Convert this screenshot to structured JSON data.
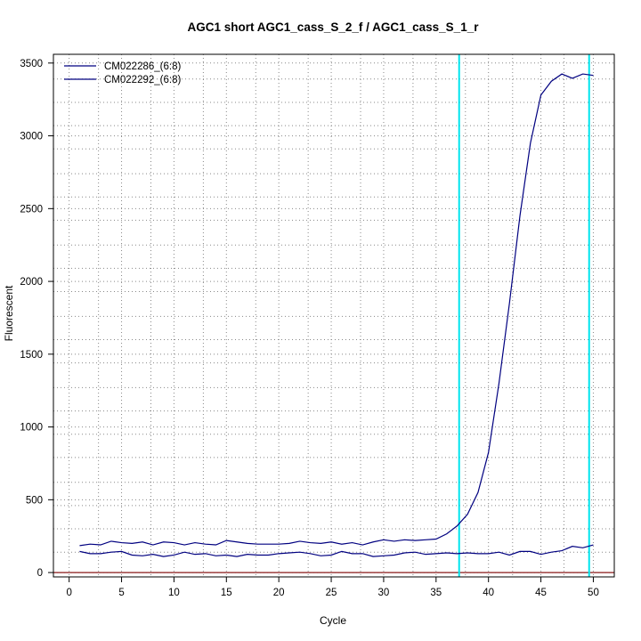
{
  "chart_data": {
    "type": "line",
    "title": "AGC1 short AGC1_cass_S_2_f / AGC1_cass_S_1_r",
    "xlabel": "Cycle",
    "ylabel": "Fluorescent",
    "xlim": [
      -1.5,
      52
    ],
    "ylim": [
      -30,
      3560
    ],
    "xticks": [
      0,
      5,
      10,
      15,
      20,
      25,
      30,
      35,
      40,
      45,
      50
    ],
    "yticks": [
      0,
      500,
      1000,
      1500,
      2000,
      2500,
      3000,
      3500
    ],
    "x_minor_grid": [
      2.8,
      7.8,
      12.8,
      17.8,
      22.8,
      27.8,
      32.8,
      37.8,
      42.3,
      47.2
    ],
    "y_minor_grid": [
      140,
      300,
      460,
      620,
      790,
      950,
      1110,
      1270,
      1440,
      1600,
      1760,
      1930,
      2090,
      2250,
      2420,
      2580,
      2740,
      2910,
      3070,
      3230,
      3390
    ],
    "grid": true,
    "legend_position": "top-left",
    "threshold_cycles": [
      37.2,
      49.6
    ],
    "threshold_color": "#00e5ee",
    "baseline_color": "#8b1a1a",
    "series": [
      {
        "name": "CM022286_(6:8)",
        "color": "#000080",
        "x": [
          1,
          2,
          3,
          4,
          5,
          6,
          7,
          8,
          9,
          10,
          11,
          12,
          13,
          14,
          15,
          16,
          17,
          18,
          19,
          20,
          21,
          22,
          23,
          24,
          25,
          26,
          27,
          28,
          29,
          30,
          31,
          32,
          33,
          34,
          35,
          36,
          37,
          38,
          39,
          40,
          41,
          42,
          43,
          44,
          45,
          46,
          47,
          48,
          49,
          50
        ],
        "values": [
          185,
          195,
          190,
          215,
          205,
          200,
          210,
          190,
          210,
          205,
          190,
          205,
          195,
          190,
          220,
          210,
          200,
          195,
          195,
          195,
          200,
          215,
          205,
          200,
          210,
          195,
          205,
          190,
          210,
          225,
          215,
          225,
          220,
          225,
          230,
          265,
          320,
          400,
          550,
          825,
          1300,
          1850,
          2450,
          2950,
          3280,
          3375,
          3425,
          3395,
          3425,
          3415
        ]
      },
      {
        "name": "CM022292_(6:8)",
        "color": "#000080",
        "x": [
          1,
          2,
          3,
          4,
          5,
          6,
          7,
          8,
          9,
          10,
          11,
          12,
          13,
          14,
          15,
          16,
          17,
          18,
          19,
          20,
          21,
          22,
          23,
          24,
          25,
          26,
          27,
          28,
          29,
          30,
          31,
          32,
          33,
          34,
          35,
          36,
          37,
          38,
          39,
          40,
          41,
          42,
          43,
          44,
          45,
          46,
          47,
          48,
          49,
          50
        ],
        "values": [
          145,
          130,
          130,
          140,
          145,
          120,
          115,
          125,
          110,
          120,
          140,
          125,
          130,
          115,
          120,
          110,
          125,
          120,
          120,
          130,
          135,
          140,
          130,
          115,
          120,
          145,
          130,
          130,
          110,
          115,
          120,
          135,
          140,
          125,
          130,
          135,
          130,
          135,
          130,
          130,
          140,
          120,
          145,
          145,
          125,
          140,
          150,
          180,
          170,
          190
        ]
      }
    ]
  }
}
